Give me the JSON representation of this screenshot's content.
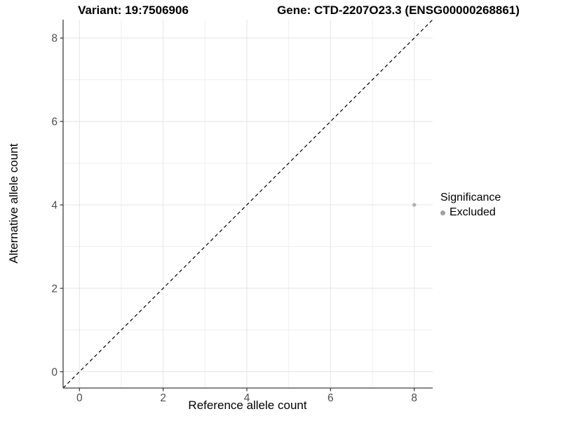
{
  "titles": {
    "variant": "Variant: 19:7506906",
    "gene": "Gene: CTD-2207O23.3 (ENSG00000268861)"
  },
  "chart_data": {
    "type": "scatter",
    "title_left": "Variant: 19:7506906",
    "title_right": "Gene: CTD-2207O23.3 (ENSG00000268861)",
    "xlabel": "Reference allele count",
    "ylabel": "Alternative allele count",
    "xlim": [
      -0.39,
      8.44
    ],
    "ylim": [
      -0.39,
      8.44
    ],
    "xticks": [
      0,
      2,
      4,
      6,
      8
    ],
    "yticks": [
      0,
      2,
      4,
      6,
      8
    ],
    "minor_xticks": [
      1,
      3,
      5,
      7
    ],
    "minor_yticks": [
      1,
      3,
      5,
      7
    ],
    "grid": true,
    "points": [
      {
        "x": 8,
        "y": 4,
        "significance": "Excluded",
        "color": "#b2b2b2"
      }
    ],
    "reference_line": {
      "kind": "diagonal",
      "slope": 1,
      "intercept": 0,
      "style": "dashed",
      "color": "#000000"
    },
    "legend": {
      "title": "Significance",
      "position": "right",
      "items": [
        {
          "label": "Excluded",
          "color": "#a0a0a0",
          "marker": "circle"
        }
      ]
    },
    "colors": {
      "axis_line": "#404040",
      "tick_mark": "#333333",
      "tick_label": "#4d4d4d",
      "grid_major": "#e4e4e4",
      "grid_minor": "#efefef",
      "background": "#ffffff"
    }
  }
}
